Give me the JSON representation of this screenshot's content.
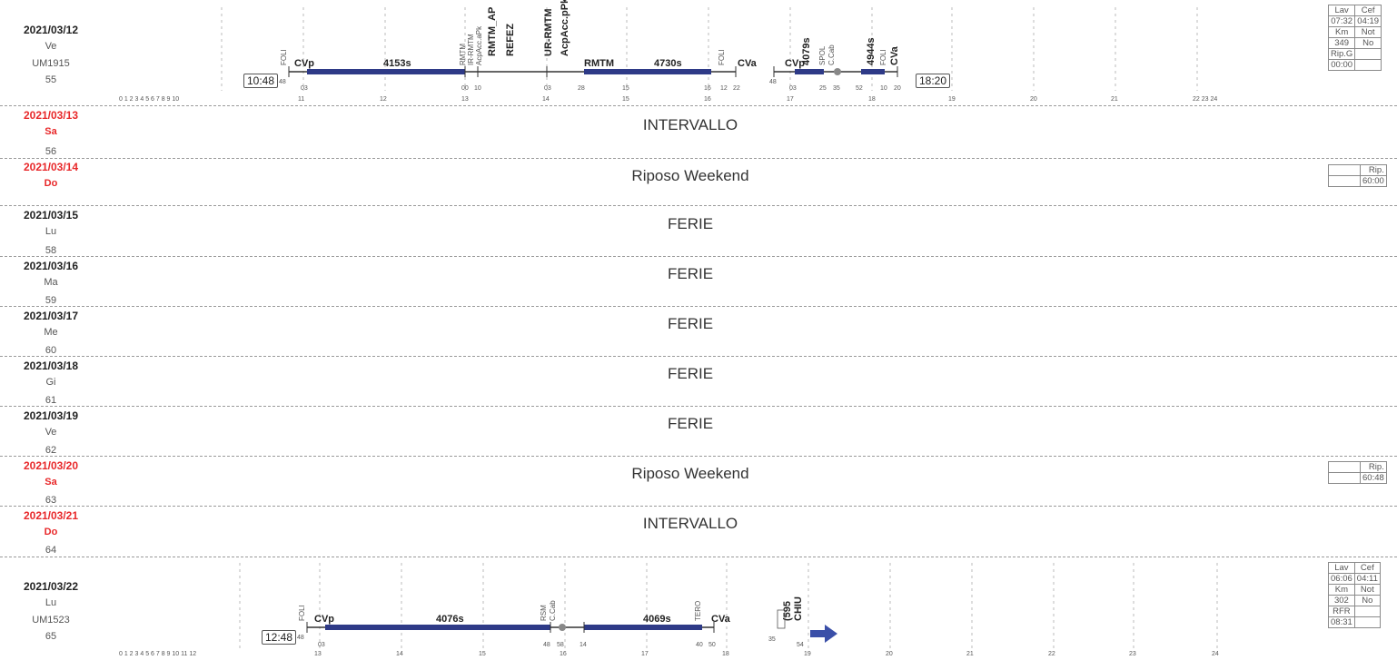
{
  "days": [
    {
      "date": "2021/03/12",
      "day": "Ve",
      "code": "UM1915",
      "num": "55",
      "holiday": false
    },
    {
      "date": "2021/03/13",
      "day": "Sa",
      "num": "56",
      "holiday": true,
      "message": "INTERVALLO"
    },
    {
      "date": "2021/03/14",
      "day": "Do",
      "holiday": true,
      "message": "Riposo Weekend",
      "rip": {
        "label": "Rip.",
        "value": "60:00"
      }
    },
    {
      "date": "2021/03/15",
      "day": "Lu",
      "num": "58",
      "holiday": false,
      "message": "FERIE"
    },
    {
      "date": "2021/03/16",
      "day": "Ma",
      "num": "59",
      "holiday": false,
      "message": "FERIE"
    },
    {
      "date": "2021/03/17",
      "day": "Me",
      "num": "60",
      "holiday": false,
      "message": "FERIE"
    },
    {
      "date": "2021/03/18",
      "day": "Gi",
      "num": "61",
      "holiday": false,
      "message": "FERIE"
    },
    {
      "date": "2021/03/19",
      "day": "Ve",
      "num": "62",
      "holiday": false,
      "message": "FERIE"
    },
    {
      "date": "2021/03/20",
      "day": "Sa",
      "num": "63",
      "holiday": true,
      "message": "Riposo Weekend",
      "rip": {
        "label": "Rip.",
        "value": "60:48"
      }
    },
    {
      "date": "2021/03/21",
      "day": "Do",
      "num": "64",
      "holiday": true,
      "message": "INTERVALLO"
    },
    {
      "date": "2021/03/22",
      "day": "Lu",
      "code": "UM1523",
      "num": "65",
      "holiday": false
    }
  ],
  "shift1": {
    "start": "10:48",
    "end": "18:20",
    "stats": [
      [
        "Lav",
        "Cef"
      ],
      [
        "07:32",
        "04:19"
      ],
      [
        "Km",
        "Not"
      ],
      [
        "349",
        "No"
      ],
      [
        "Rip.G",
        ""
      ],
      [
        "00:00",
        ""
      ]
    ],
    "hours": [
      "11",
      "12",
      "13",
      "14",
      "15",
      "16",
      "17",
      "18",
      "19",
      "20",
      "21",
      "22 23 24"
    ],
    "early_hours": "0 1 2 3 4 5 6 7 8 9 10",
    "segments": [
      "CVp",
      "4153s",
      "RMTM",
      "4730s",
      "CVa",
      "CVp",
      "4079s",
      "4944s",
      "CVa"
    ],
    "vlabels": [
      "FOLI",
      "RMTM",
      "IR-RMTM",
      "AcpAcc.aPk",
      "RMTM_AP",
      "REFEZ",
      "UR-RMTM",
      "AcpAcc.pPk",
      "FOLI",
      "SPOL",
      "C.Cab",
      "FOLI"
    ],
    "minutes": [
      "48",
      "03",
      "00",
      "10",
      "03",
      "28",
      "15",
      "12",
      "22",
      "48",
      "03",
      "25",
      "35",
      "52",
      "10",
      "20"
    ]
  },
  "shift2": {
    "start": "12:48",
    "stats": [
      [
        "Lav",
        "Cef"
      ],
      [
        "06:06",
        "04:11"
      ],
      [
        "Km",
        "Not"
      ],
      [
        "302",
        "No"
      ],
      [
        "RFR",
        ""
      ],
      [
        "08:31",
        ""
      ]
    ],
    "hours": [
      "13",
      "14",
      "15",
      "16",
      "17",
      "18",
      "19",
      "20",
      "21",
      "22",
      "23",
      "24"
    ],
    "early_hours": "0 1 2 3 4 5 6 7 8 9 10 11 12",
    "segments": [
      "CVp",
      "4076s",
      "4069s",
      "CVa"
    ],
    "vlabels": [
      "FOLI",
      "RSM",
      "C.Cab",
      "TERO",
      "(595",
      "CHIU"
    ],
    "minutes": [
      "48",
      "03",
      "48",
      "58",
      "14",
      "40",
      "50",
      "35",
      "54"
    ]
  },
  "colors": {
    "bar": "#2e3a87",
    "holiday": "#e8282a",
    "arrow": "#3a4fa8"
  }
}
